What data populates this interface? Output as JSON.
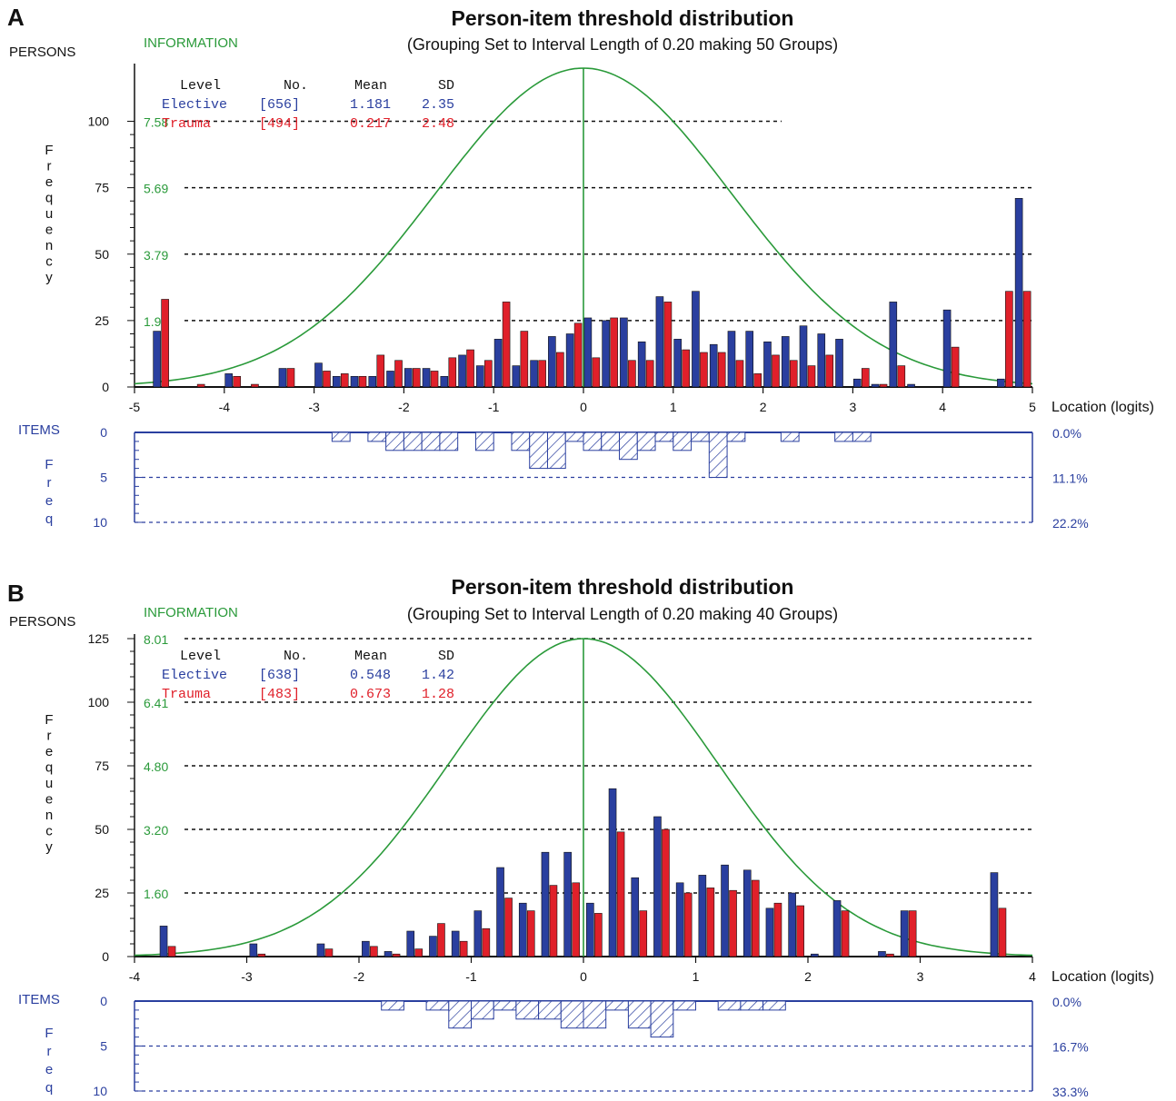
{
  "colors": {
    "elective": "#2a3f9f",
    "trauma": "#e0202a",
    "information": "#2a9a3a",
    "items": "#2a3f9f",
    "text": "#111111"
  },
  "chart_data": [
    {
      "panel_label": "A",
      "type": "bar",
      "title": "Person-item threshold distribution",
      "subtitle": "(Grouping Set to Interval Length of  0.20  making  50  Groups)",
      "persons_label": "PERSONS",
      "information_label": "INFORMATION",
      "ylabel": "Frequency",
      "xlabel": "Location (logits)",
      "xlim": [
        -5,
        5
      ],
      "xticks": [
        "-5",
        "-4",
        "-3",
        "-2",
        "-1",
        "0",
        "1",
        "2",
        "3",
        "4",
        "5"
      ],
      "ylim": [
        0,
        115
      ],
      "yticks": [
        "0",
        "25",
        "50",
        "75",
        "100"
      ],
      "info_ticks": [
        "1.90",
        "3.79",
        "5.69",
        "7.58"
      ],
      "info_max": 8.3,
      "info_peak_x": 0.0,
      "info_scale": 1.56,
      "legend_header": {
        "level": "Level",
        "no": "No.",
        "mean": "Mean",
        "sd": "SD"
      },
      "series": [
        {
          "name": "Elective",
          "no": "[656]",
          "mean": "1.181",
          "sd": "2.35",
          "x": [
            -4.7,
            -4.3,
            -3.9,
            -3.7,
            -3.3,
            -2.9,
            -2.7,
            -2.5,
            -2.3,
            -2.1,
            -1.9,
            -1.7,
            -1.5,
            -1.3,
            -1.1,
            -0.9,
            -0.7,
            -0.5,
            -0.3,
            -0.1,
            0.1,
            0.3,
            0.5,
            0.7,
            0.9,
            1.1,
            1.3,
            1.5,
            1.7,
            1.9,
            2.1,
            2.3,
            2.5,
            2.7,
            2.9,
            3.1,
            3.3,
            3.5,
            3.7,
            3.9,
            4.1,
            4.3,
            4.5,
            4.7
          ],
          "values": [
            21,
            0,
            5,
            0,
            7,
            9,
            4,
            4,
            4,
            6,
            7,
            7,
            4,
            12,
            8,
            18,
            8,
            10,
            19,
            20,
            26,
            25,
            26,
            17,
            34,
            18,
            36,
            16,
            21,
            21,
            17,
            19,
            23,
            20,
            18,
            3,
            1,
            32,
            1,
            0,
            29,
            0,
            0,
            3
          ]
        },
        {
          "name": "Trauma",
          "no": "[494]",
          "mean": "0.217",
          "sd": "2.48",
          "x": [
            -4.7,
            -4.3,
            -3.9,
            -3.7,
            -3.3,
            -2.9,
            -2.7,
            -2.5,
            -2.3,
            -2.1,
            -1.9,
            -1.7,
            -1.5,
            -1.3,
            -1.1,
            -0.9,
            -0.7,
            -0.5,
            -0.3,
            -0.1,
            0.1,
            0.3,
            0.5,
            0.7,
            0.9,
            1.1,
            1.3,
            1.5,
            1.7,
            1.9,
            2.1,
            2.3,
            2.5,
            2.7,
            2.9,
            3.1,
            3.3,
            3.5,
            3.7,
            3.9,
            4.1,
            4.3,
            4.5,
            4.7
          ],
          "values": [
            33,
            1,
            4,
            1,
            7,
            6,
            5,
            4,
            12,
            10,
            7,
            6,
            11,
            14,
            10,
            32,
            21,
            10,
            13,
            24,
            11,
            26,
            10,
            10,
            32,
            14,
            13,
            13,
            10,
            5,
            12,
            10,
            8,
            12,
            0,
            7,
            1,
            8,
            0,
            0,
            15,
            0,
            0,
            36
          ]
        }
      ],
      "extra_bars": {
        "elective_x": 4.9,
        "elective_value": 71,
        "trauma_x": 4.9,
        "trauma_value": 36,
        "trauma_left_x": -4.7
      },
      "items": {
        "label": "ITEMS",
        "axis_label": "Freq",
        "yticks": [
          "0",
          "5",
          "10"
        ],
        "pct_ticks": [
          "0.0%",
          "11.1%",
          "22.2%"
        ],
        "ymax": 10,
        "x": [
          -2.7,
          -2.3,
          -2.1,
          -1.9,
          -1.7,
          -1.5,
          -1.3,
          -1.1,
          -0.9,
          -0.7,
          -0.5,
          -0.3,
          -0.1,
          0.1,
          0.3,
          0.5,
          0.7,
          0.9,
          1.1,
          1.3,
          1.5,
          1.7,
          2.3,
          2.9,
          3.1
        ],
        "values": [
          1,
          1,
          2,
          2,
          2,
          2,
          0,
          2,
          0,
          2,
          4,
          4,
          1,
          2,
          2,
          3,
          2,
          1,
          2,
          1,
          5,
          1,
          1,
          1,
          1
        ]
      }
    },
    {
      "panel_label": "B",
      "type": "bar",
      "title": "Person-item threshold distribution",
      "subtitle": "(Grouping Set to Interval Length of  0.20  making  40  Groups)",
      "persons_label": "PERSONS",
      "information_label": "INFORMATION",
      "ylabel": "Frequency",
      "xlabel": "Location (logits)",
      "xlim": [
        -4,
        4
      ],
      "xticks": [
        "-4",
        "-3",
        "-2",
        "-1",
        "0",
        "1",
        "2",
        "3",
        "4"
      ],
      "ylim": [
        0,
        125
      ],
      "yticks": [
        "0",
        "25",
        "50",
        "75",
        "100",
        "125"
      ],
      "info_ticks": [
        "1.60",
        "3.20",
        "4.80",
        "6.41",
        "8.01"
      ],
      "info_max": 8.01,
      "info_peak_x": 0.0,
      "info_scale": 1.0,
      "legend_header": {
        "level": "Level",
        "no": "No.",
        "mean": "Mean",
        "sd": "SD"
      },
      "series": [
        {
          "name": "Elective",
          "no": "[638]",
          "mean": "0.548",
          "sd": "1.42",
          "x": [
            -3.7,
            -2.9,
            -2.3,
            -1.9,
            -1.7,
            -1.5,
            -1.3,
            -1.1,
            -0.9,
            -0.7,
            -0.5,
            -0.3,
            -0.1,
            0.1,
            0.3,
            0.5,
            0.7,
            0.9,
            1.1,
            1.3,
            1.5,
            1.7,
            1.9,
            2.1,
            2.3,
            2.7,
            2.9,
            3.7
          ],
          "values": [
            12,
            5,
            5,
            6,
            2,
            10,
            8,
            10,
            18,
            35,
            21,
            41,
            41,
            21,
            66,
            31,
            55,
            29,
            32,
            36,
            34,
            19,
            25,
            1,
            22,
            2,
            18,
            33
          ]
        },
        {
          "name": "Trauma",
          "no": "[483]",
          "mean": "0.673",
          "sd": "1.28",
          "x": [
            -3.7,
            -2.9,
            -2.3,
            -1.9,
            -1.7,
            -1.5,
            -1.3,
            -1.1,
            -0.9,
            -0.7,
            -0.5,
            -0.3,
            -0.1,
            0.1,
            0.3,
            0.5,
            0.7,
            0.9,
            1.1,
            1.3,
            1.5,
            1.7,
            1.9,
            2.1,
            2.3,
            2.7,
            2.9,
            3.7
          ],
          "values": [
            4,
            1,
            3,
            4,
            1,
            3,
            13,
            6,
            11,
            23,
            18,
            28,
            29,
            17,
            49,
            18,
            50,
            25,
            27,
            26,
            30,
            21,
            20,
            0,
            18,
            1,
            18,
            19
          ]
        }
      ],
      "items": {
        "label": "ITEMS",
        "axis_label": "Freq",
        "yticks": [
          "0",
          "5",
          "10"
        ],
        "pct_ticks": [
          "0.0%",
          "16.7%",
          "33.3%"
        ],
        "ymax": 10,
        "x": [
          -1.7,
          -1.3,
          -1.1,
          -0.9,
          -0.7,
          -0.5,
          -0.3,
          -0.1,
          0.1,
          0.3,
          0.5,
          0.7,
          0.9,
          1.3,
          1.5,
          1.7
        ],
        "values": [
          1,
          1,
          3,
          2,
          1,
          2,
          2,
          3,
          3,
          1,
          3,
          4,
          1,
          1,
          1,
          1
        ]
      }
    }
  ]
}
